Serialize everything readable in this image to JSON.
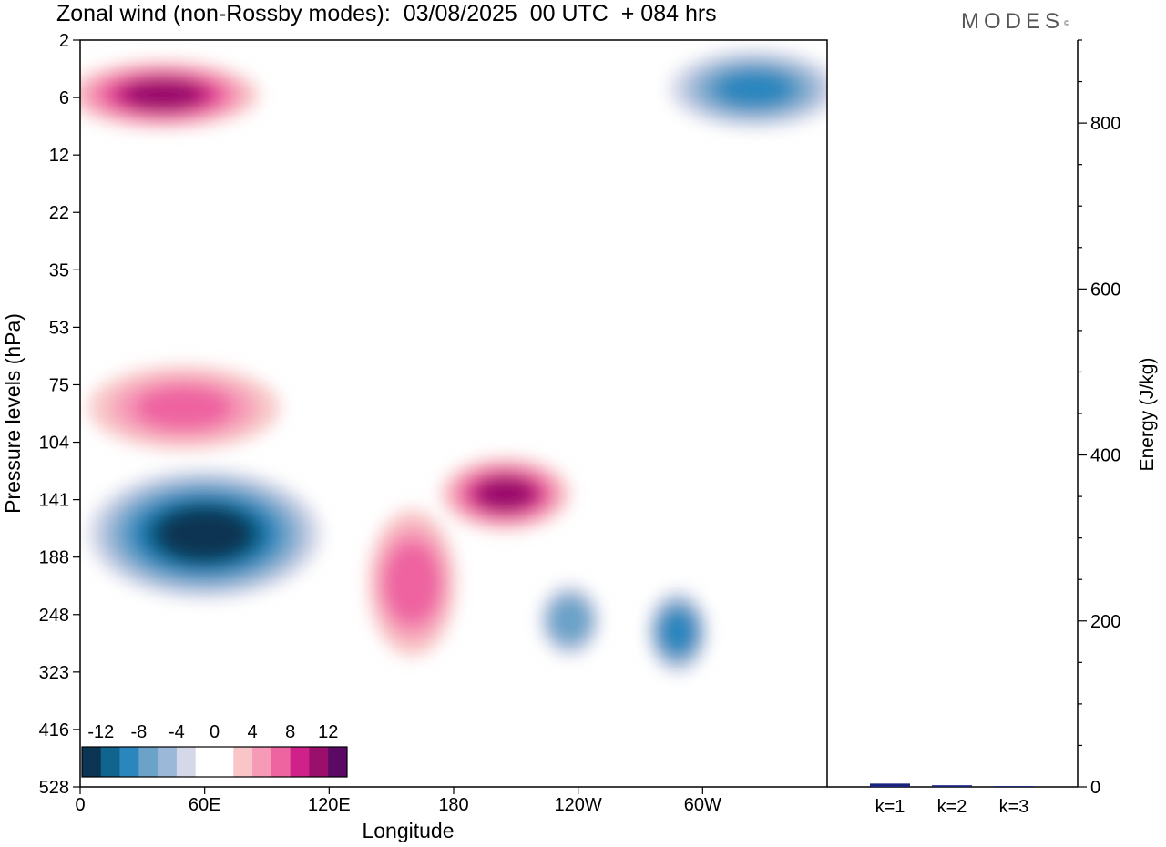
{
  "header": {
    "title": "Zonal wind (non-Rossby modes):  03/08/2025  00 UTC  + 084 hrs",
    "brand": "MODES",
    "brand_mark": "©"
  },
  "chart_data": [
    {
      "type": "heatmap",
      "title": "Zonal wind (non-Rossby modes)",
      "xlabel": "Longitude",
      "ylabel": "Pressure levels (hPa)",
      "x_ticks": [
        "0",
        "60E",
        "120E",
        "180",
        "120W",
        "60W"
      ],
      "x_tick_values": [
        0,
        60,
        120,
        180,
        240,
        300
      ],
      "xlim": [
        0,
        360
      ],
      "y_ticks": [
        "2",
        "6",
        "12",
        "22",
        "35",
        "53",
        "75",
        "104",
        "141",
        "188",
        "248",
        "323",
        "416",
        "528"
      ],
      "colorbar": {
        "labels": [
          "-12",
          "-8",
          "-4",
          "0",
          "4",
          "8",
          "12"
        ],
        "levels": [
          -14,
          -12,
          -10,
          -8,
          -6,
          -4,
          -2,
          0,
          2,
          4,
          6,
          8,
          10,
          12,
          14
        ],
        "colors": [
          "#0c3553",
          "#10658f",
          "#2c86be",
          "#6aa2c8",
          "#9cb8d8",
          "#d5d8e8",
          "#ffffff",
          "#ffffff",
          "#f8c6c6",
          "#f69ab8",
          "#ee64a0",
          "#cf2288",
          "#9a0f6c",
          "#5a0a65"
        ]
      },
      "features": [
        {
          "name": "stratospheric negative band",
          "lon": [
            10,
            110
          ],
          "level_index": [
            7.6,
            9.6
          ],
          "value": -13
        },
        {
          "name": "stratospheric positive band",
          "lon": [
            10,
            90
          ],
          "level_index": [
            5.8,
            7.0
          ],
          "value": 6
        },
        {
          "name": "upper troposphere positive maximum",
          "lon": [
            145,
            175
          ],
          "level_index": [
            8.3,
            10.6
          ],
          "value": 7
        },
        {
          "name": "central Pacific positive maximum",
          "lon": [
            180,
            230
          ],
          "level_index": [
            7.4,
            8.4
          ],
          "value": 10
        },
        {
          "name": "negative cell 130W",
          "lon": [
            228,
            244
          ],
          "level_index": [
            9.6,
            10.6
          ],
          "value": -7
        },
        {
          "name": "negative cell 75W",
          "lon": [
            280,
            296
          ],
          "level_index": [
            9.7,
            10.9
          ],
          "value": -9
        },
        {
          "name": "top level positive band",
          "lon": [
            0,
            80
          ],
          "level_index": [
            0.5,
            1.4
          ],
          "value": 10
        },
        {
          "name": "top level negative band",
          "lon": [
            290,
            360
          ],
          "level_index": [
            0.3,
            1.4
          ],
          "value": -8
        }
      ]
    },
    {
      "type": "bar",
      "title": "",
      "xlabel": "",
      "ylabel": "Energy (J/kg)",
      "categories": [
        "k=1",
        "k=2",
        "k=3"
      ],
      "values": [
        4,
        2,
        1
      ],
      "ylim": [
        0,
        900
      ],
      "y_ticks": [
        "0",
        "200",
        "400",
        "600",
        "800"
      ],
      "y_tick_values": [
        0,
        200,
        400,
        600,
        800
      ],
      "bar_color": "#1a237e"
    }
  ]
}
